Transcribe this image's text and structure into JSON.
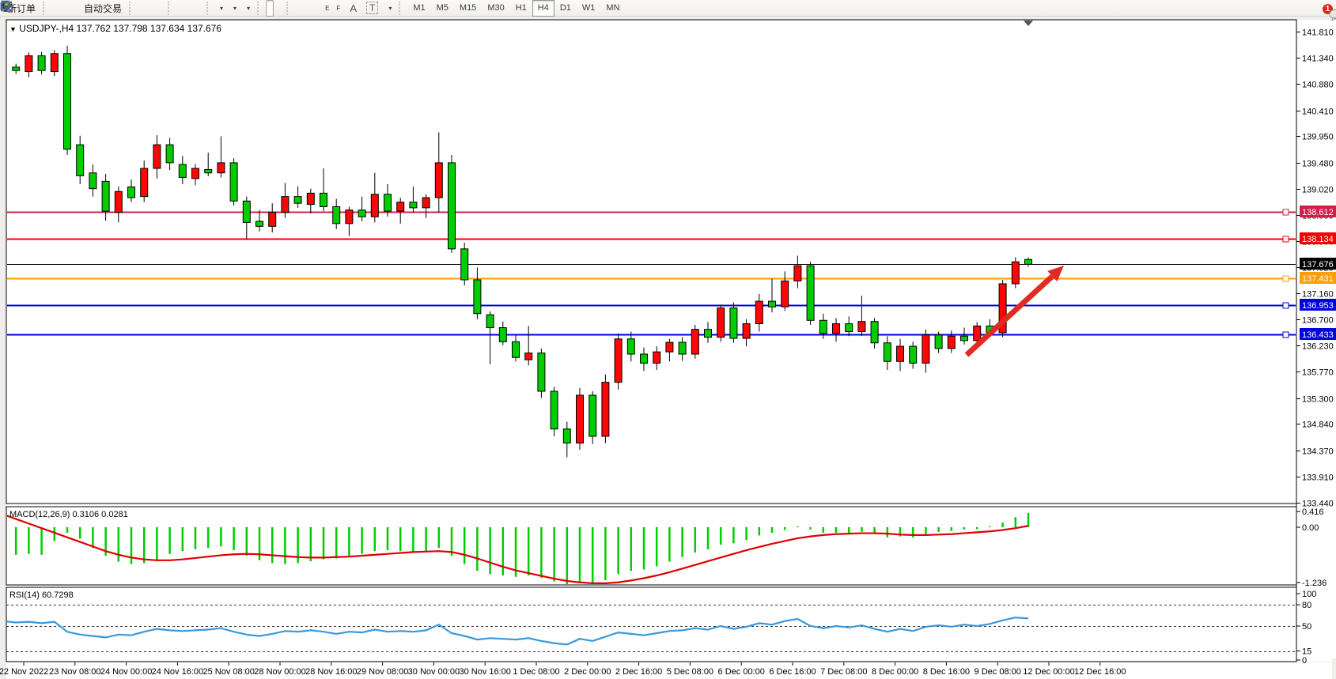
{
  "toolbar": {
    "new_order_label": "新订单",
    "auto_trading_label": "自动交易",
    "text_tool_label": "A",
    "label_tool_label": "T",
    "fibo_tool_label": "F",
    "channel_tool_label": "E",
    "timeframes": [
      "M1",
      "M5",
      "M15",
      "M30",
      "H1",
      "H4",
      "D1",
      "W1",
      "MN"
    ],
    "active_timeframe": "H4",
    "notification_count": "1"
  },
  "chart": {
    "title": "USDJPY-,H4  137.762 137.798 137.634 137.676",
    "symbol": "USDJPY-",
    "period": "H4",
    "open": "137.762",
    "high": "137.798",
    "low": "137.634",
    "close": "137.676"
  },
  "indicators": {
    "macd_label": "MACD(12,26,9) 0.3106 0.0281",
    "rsi_label": "RSI(14) 60.7298"
  },
  "chart_data": {
    "type": "candlestick",
    "symbol": "USDJPY-",
    "timeframe": "H4",
    "grid": false,
    "price_axis_ticks": [
      "141.810",
      "141.340",
      "140.880",
      "140.410",
      "139.950",
      "139.480",
      "139.020",
      "138.550",
      "138.090",
      "137.620",
      "137.160",
      "136.700",
      "136.230",
      "135.770",
      "135.300",
      "134.840",
      "134.370",
      "133.910",
      "133.440"
    ],
    "macd_axis_ticks": [
      "0.416",
      "0.00",
      "-1.236"
    ],
    "rsi_axis_ticks": [
      "100",
      "80",
      "50",
      "15",
      "0"
    ],
    "rsi_levels": [
      "80",
      "50",
      "15"
    ],
    "date_labels": [
      "22 Nov 2022",
      "23 Nov 08:00",
      "24 Nov 00:00",
      "24 Nov 16:00",
      "25 Nov 08:00",
      "28 Nov 00:00",
      "28 Nov 16:00",
      "29 Nov 08:00",
      "30 Nov 00:00",
      "30 Nov 16:00",
      "1 Dec 08:00",
      "2 Dec 00:00",
      "2 Dec 16:00",
      "5 Dec 08:00",
      "6 Dec 00:00",
      "6 Dec 16:00",
      "7 Dec 08:00",
      "8 Dec 00:00",
      "8 Dec 16:00",
      "9 Dec 08:00",
      "12 Dec 00:00",
      "12 Dec 16:00"
    ],
    "hlines": [
      {
        "label": "138.612",
        "color": "#d0204a",
        "width": 2,
        "marker": true
      },
      {
        "label": "138.134",
        "color": "#f40000",
        "width": 2,
        "marker": true
      },
      {
        "label": "137.676",
        "color": "#000000",
        "width": 1,
        "marker": false
      },
      {
        "label": "137.431",
        "color": "#ff9e00",
        "width": 2,
        "marker": true
      },
      {
        "label": "136.953",
        "color": "#0000dd",
        "width": 2,
        "marker": true
      },
      {
        "label": "136.433",
        "color": "#0000dd",
        "width": 2,
        "marker": true
      }
    ],
    "colors": {
      "bull": "#ff0505",
      "bear": "#00cd00",
      "wick": "#000000",
      "macd_hist": "#00cd00",
      "macd_signal": "#e00000",
      "rsi_line": "#3898dc",
      "arrow": "#e02b20"
    },
    "arrow": {
      "from": [
        1222,
        449
      ],
      "to": [
        1345,
        336
      ]
    },
    "candles": [
      [
        141.32,
        141.38,
        141.1,
        141.18
      ],
      [
        141.18,
        141.24,
        141.06,
        141.12
      ],
      [
        141.1,
        141.44,
        141.0,
        141.38
      ],
      [
        141.38,
        141.45,
        141.05,
        141.12
      ],
      [
        141.1,
        141.48,
        141.02,
        141.42
      ],
      [
        141.42,
        141.56,
        139.62,
        139.72
      ],
      [
        139.8,
        139.96,
        139.1,
        139.25
      ],
      [
        139.3,
        139.45,
        138.88,
        139.02
      ],
      [
        139.15,
        139.28,
        138.45,
        138.62
      ],
      [
        138.6,
        139.06,
        138.42,
        138.97
      ],
      [
        139.05,
        139.18,
        138.78,
        138.86
      ],
      [
        138.88,
        139.52,
        138.78,
        139.38
      ],
      [
        139.38,
        139.97,
        139.2,
        139.8
      ],
      [
        139.8,
        139.92,
        139.35,
        139.48
      ],
      [
        139.45,
        139.6,
        139.1,
        139.22
      ],
      [
        139.2,
        139.46,
        139.08,
        139.38
      ],
      [
        139.36,
        139.66,
        139.24,
        139.3
      ],
      [
        139.3,
        139.95,
        139.22,
        139.48
      ],
      [
        139.48,
        139.56,
        138.72,
        138.8
      ],
      [
        138.8,
        138.88,
        138.12,
        138.42
      ],
      [
        138.44,
        138.64,
        138.26,
        138.35
      ],
      [
        138.35,
        138.76,
        138.24,
        138.6
      ],
      [
        138.6,
        139.12,
        138.5,
        138.88
      ],
      [
        138.88,
        139.06,
        138.68,
        138.76
      ],
      [
        138.74,
        139.02,
        138.58,
        138.94
      ],
      [
        138.94,
        139.38,
        138.62,
        138.7
      ],
      [
        138.7,
        138.84,
        138.3,
        138.4
      ],
      [
        138.4,
        138.7,
        138.18,
        138.64
      ],
      [
        138.64,
        138.88,
        138.44,
        138.52
      ],
      [
        138.52,
        139.3,
        138.42,
        138.92
      ],
      [
        138.92,
        139.1,
        138.52,
        138.62
      ],
      [
        138.62,
        138.86,
        138.4,
        138.78
      ],
      [
        138.78,
        139.06,
        138.6,
        138.68
      ],
      [
        138.68,
        138.92,
        138.5,
        138.86
      ],
      [
        138.86,
        140.02,
        138.6,
        139.48
      ],
      [
        139.48,
        139.62,
        137.88,
        137.95
      ],
      [
        137.95,
        138.06,
        137.3,
        137.4
      ],
      [
        137.4,
        137.62,
        136.7,
        136.8
      ],
      [
        136.78,
        136.84,
        135.9,
        136.55
      ],
      [
        136.55,
        136.66,
        136.24,
        136.3
      ],
      [
        136.3,
        136.42,
        135.95,
        136.02
      ],
      [
        135.98,
        136.58,
        135.88,
        136.1
      ],
      [
        136.1,
        136.18,
        135.3,
        135.42
      ],
      [
        135.42,
        135.5,
        134.62,
        134.75
      ],
      [
        134.75,
        134.88,
        134.25,
        134.5
      ],
      [
        134.5,
        135.48,
        134.38,
        135.35
      ],
      [
        135.35,
        135.42,
        134.48,
        134.62
      ],
      [
        134.62,
        135.72,
        134.5,
        135.58
      ],
      [
        135.58,
        136.45,
        135.45,
        136.35
      ],
      [
        136.35,
        136.48,
        135.95,
        136.08
      ],
      [
        136.08,
        136.2,
        135.78,
        135.92
      ],
      [
        135.92,
        136.22,
        135.8,
        136.12
      ],
      [
        136.12,
        136.35,
        135.95,
        136.29
      ],
      [
        136.29,
        136.38,
        135.96,
        136.08
      ],
      [
        136.08,
        136.6,
        136.0,
        136.52
      ],
      [
        136.52,
        136.65,
        136.28,
        136.38
      ],
      [
        136.38,
        136.96,
        136.3,
        136.9
      ],
      [
        136.9,
        137.0,
        136.28,
        136.36
      ],
      [
        136.36,
        136.7,
        136.22,
        136.62
      ],
      [
        136.62,
        137.15,
        136.48,
        137.02
      ],
      [
        137.02,
        137.42,
        136.82,
        136.92
      ],
      [
        136.92,
        137.55,
        136.85,
        137.38
      ],
      [
        137.38,
        137.83,
        137.25,
        137.65
      ],
      [
        137.65,
        137.72,
        136.6,
        136.68
      ],
      [
        136.68,
        136.8,
        136.35,
        136.45
      ],
      [
        136.45,
        136.72,
        136.3,
        136.62
      ],
      [
        136.62,
        136.75,
        136.4,
        136.48
      ],
      [
        136.48,
        137.12,
        136.4,
        136.66
      ],
      [
        136.66,
        136.72,
        136.18,
        136.28
      ],
      [
        136.28,
        136.4,
        135.8,
        135.95
      ],
      [
        135.95,
        136.35,
        135.78,
        136.22
      ],
      [
        136.22,
        136.3,
        135.82,
        135.92
      ],
      [
        135.92,
        136.52,
        135.75,
        136.42
      ],
      [
        136.42,
        136.48,
        136.1,
        136.18
      ],
      [
        136.18,
        136.5,
        136.1,
        136.4
      ],
      [
        136.4,
        136.55,
        136.25,
        136.32
      ],
      [
        136.32,
        136.65,
        136.22,
        136.58
      ],
      [
        136.58,
        136.7,
        136.38,
        136.46
      ],
      [
        136.46,
        137.4,
        136.38,
        137.33
      ],
      [
        137.33,
        137.8,
        137.25,
        137.72
      ],
      [
        137.762,
        137.798,
        137.634,
        137.676
      ]
    ],
    "macd_hist": [
      -0.62,
      -0.6,
      -0.58,
      -0.6,
      -0.3,
      -0.12,
      -0.25,
      -0.45,
      -0.62,
      -0.75,
      -0.8,
      -0.78,
      -0.72,
      -0.58,
      -0.52,
      -0.48,
      -0.45,
      -0.42,
      -0.5,
      -0.62,
      -0.72,
      -0.78,
      -0.8,
      -0.78,
      -0.74,
      -0.7,
      -0.68,
      -0.62,
      -0.58,
      -0.52,
      -0.5,
      -0.52,
      -0.55,
      -0.52,
      -0.45,
      -0.62,
      -0.8,
      -0.95,
      -1.02,
      -1.05,
      -1.08,
      -1.05,
      -1.1,
      -1.18,
      -1.24,
      -1.2,
      -1.22,
      -1.15,
      -1.02,
      -0.95,
      -0.92,
      -0.85,
      -0.75,
      -0.65,
      -0.55,
      -0.48,
      -0.38,
      -0.35,
      -0.28,
      -0.18,
      -0.12,
      -0.06,
      0.02,
      -0.05,
      -0.12,
      -0.12,
      -0.14,
      -0.1,
      -0.15,
      -0.22,
      -0.2,
      -0.22,
      -0.15,
      -0.1,
      -0.08,
      -0.05,
      -0.04,
      0.02,
      0.1,
      0.22,
      0.31
    ],
    "macd_signal": [
      0.28,
      0.18,
      0.08,
      -0.02,
      -0.12,
      -0.22,
      -0.32,
      -0.42,
      -0.52,
      -0.6,
      -0.66,
      -0.7,
      -0.72,
      -0.72,
      -0.7,
      -0.67,
      -0.64,
      -0.61,
      -0.59,
      -0.58,
      -0.59,
      -0.61,
      -0.63,
      -0.65,
      -0.66,
      -0.66,
      -0.65,
      -0.64,
      -0.62,
      -0.6,
      -0.58,
      -0.56,
      -0.54,
      -0.53,
      -0.52,
      -0.54,
      -0.6,
      -0.68,
      -0.77,
      -0.86,
      -0.94,
      -1.0,
      -1.06,
      -1.12,
      -1.17,
      -1.2,
      -1.22,
      -1.22,
      -1.2,
      -1.16,
      -1.11,
      -1.05,
      -0.98,
      -0.9,
      -0.82,
      -0.74,
      -0.66,
      -0.58,
      -0.5,
      -0.43,
      -0.36,
      -0.3,
      -0.24,
      -0.2,
      -0.17,
      -0.15,
      -0.14,
      -0.13,
      -0.13,
      -0.14,
      -0.16,
      -0.17,
      -0.17,
      -0.16,
      -0.15,
      -0.13,
      -0.11,
      -0.09,
      -0.06,
      -0.02,
      0.03
    ],
    "rsi": [
      57,
      55,
      56,
      54,
      56,
      42,
      38,
      36,
      34,
      38,
      37,
      42,
      46,
      44,
      43,
      44,
      45,
      47,
      42,
      38,
      36,
      39,
      43,
      42,
      44,
      42,
      39,
      42,
      41,
      45,
      42,
      43,
      42,
      44,
      52,
      40,
      36,
      31,
      33,
      32,
      31,
      33,
      29,
      26,
      24,
      32,
      29,
      35,
      41,
      39,
      37,
      40,
      43,
      44,
      47,
      45,
      50,
      46,
      49,
      54,
      52,
      57,
      60,
      50,
      47,
      50,
      48,
      51,
      46,
      42,
      46,
      43,
      49,
      51,
      49,
      52,
      50,
      53,
      58,
      62,
      60.7
    ]
  }
}
